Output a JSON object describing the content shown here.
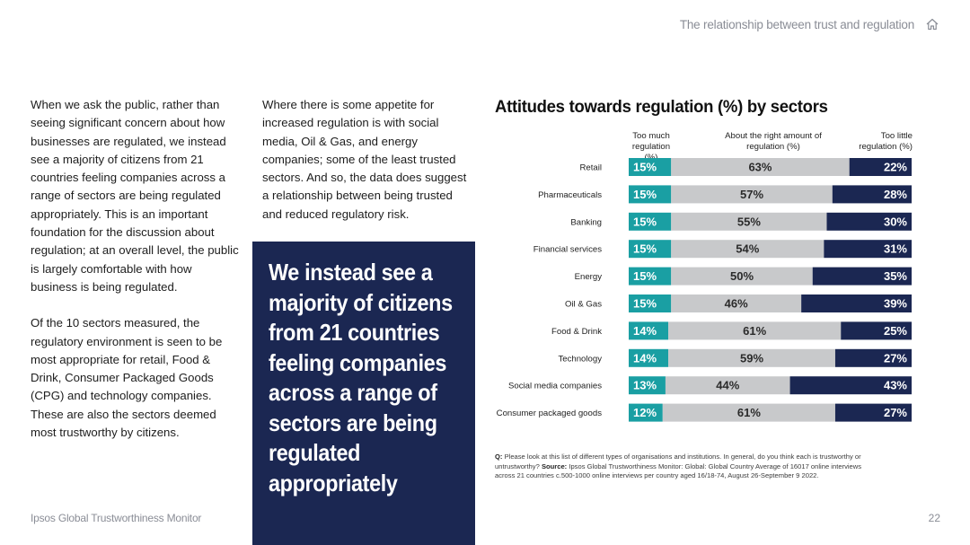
{
  "header": {
    "title": "The relationship between trust and regulation",
    "home_icon": "home-icon"
  },
  "left_text": {
    "paragraph_1": "When we ask the public, rather than seeing significant concern about how businesses are regulated, we instead see a majority of citizens from 21 countries feeling companies across a range of sectors are being regulated appropriately. This is an important foundation for the discussion about regulation; at an overall level, the public is largely comfortable with how business is being regulated.",
    "paragraph_2": "Of the 10 sectors measured, the regulatory environment is seen to be most appropriate for retail, Food & Drink, Consumer Packaged Goods (CPG) and technology companies. These are also the sectors deemed most trustworthy by citizens."
  },
  "middle_text": {
    "paragraph_1": "Where there is some appetite for increased regulation is with social media, Oil & Gas, and energy companies; some of the least trusted sectors. And so, the data does suggest a relationship between being trusted and reduced regulatory risk."
  },
  "callout": {
    "text": "We instead see a majority of citizens from 21 countries feeling companies across a range of sectors are being regulated appropriately"
  },
  "colors": {
    "too_much": "#1a9fa3",
    "about_right": "#c8c9cb",
    "too_little": "#1b2752",
    "callout_bg": "#1b2752"
  },
  "chart_data": {
    "type": "bar",
    "stacked": true,
    "orientation": "horizontal",
    "title": "Attitudes towards regulation (%) by sectors",
    "column_headers": {
      "too_much": "Too much regulation (%)",
      "about_right": "About the right amount of regulation (%)",
      "too_little": "Too little regulation (%)"
    },
    "categories": [
      "Retail",
      "Pharmaceuticals",
      "Banking",
      "Financial services",
      "Energy",
      "Oil & Gas",
      "Food & Drink",
      "Technology",
      "Social media companies",
      "Consumer packaged goods"
    ],
    "series": [
      {
        "name": "Too much regulation (%)",
        "values": [
          15,
          15,
          15,
          15,
          15,
          15,
          14,
          14,
          13,
          12
        ]
      },
      {
        "name": "About the right amount of regulation (%)",
        "values": [
          63,
          57,
          55,
          54,
          50,
          46,
          61,
          59,
          44,
          61
        ]
      },
      {
        "name": "Too little regulation (%)",
        "values": [
          22,
          28,
          30,
          31,
          35,
          39,
          25,
          27,
          43,
          27
        ]
      }
    ],
    "xlim": [
      0,
      100
    ],
    "value_suffix": "%"
  },
  "footnote": {
    "q_label": "Q:",
    "q_text": "Please look at this list of different types of organisations and institutions. In general, do you think each is trustworthy or untrustworthy?",
    "source_label": "Source:",
    "source_text": "Ipsos Global Trustworthiness Monitor: Global: Global Country Average of 16017 online interviews across 21 countries c.500-1000 online interviews per country aged 16/18-74, August 26-September 9 2022."
  },
  "footer": {
    "left": "Ipsos Global Trustworthiness Monitor",
    "page_number": "22"
  }
}
